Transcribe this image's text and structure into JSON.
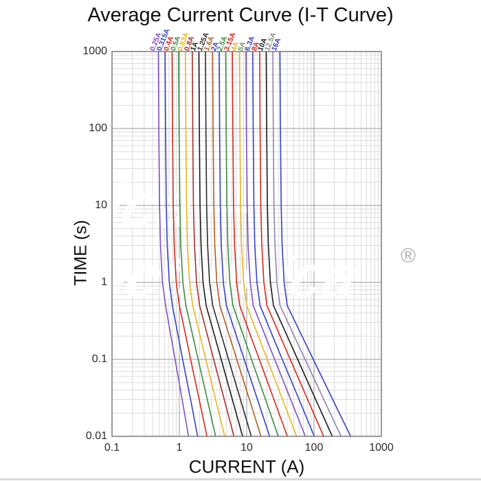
{
  "title": "Average Current Curve (I-T Curve)",
  "x_axis": {
    "label": "CURRENT (A)",
    "ticks": [
      "0.1",
      "1",
      "10",
      "100",
      "1000"
    ]
  },
  "y_axis": {
    "label": "TIME (s)",
    "ticks": [
      "1000",
      "100",
      "10",
      "1",
      "0.1",
      "0.01"
    ]
  },
  "watermark": {
    "line1": "alca—",
    "line2": "electronica",
    "registered": "®"
  },
  "chart_data": {
    "type": "line",
    "title": "Average Current Curve (I-T Curve)",
    "xlabel": "CURRENT (A)",
    "ylabel": "TIME (s)",
    "x_scale": "log",
    "y_scale": "log",
    "x_range": [
      0.1,
      1000
    ],
    "y_range": [
      0.01,
      1000
    ],
    "grid": "log minor + major, on",
    "legend_position": "rotated labels above top of each curve",
    "t_points": [
      1000,
      100,
      10,
      3,
      1,
      0.5,
      0.2,
      0.1,
      0.03,
      0.01
    ],
    "series": [
      {
        "label": "0.25A",
        "color": "#7d4fc0",
        "currents": [
          0.488,
          0.495,
          0.508,
          0.525,
          0.563,
          0.625,
          0.751,
          0.864,
          1.1,
          1.37
        ]
      },
      {
        "label": "0.315A",
        "color": "#3340c0",
        "currents": [
          0.614,
          0.624,
          0.64,
          0.662,
          0.709,
          0.788,
          0.964,
          1.12,
          1.47,
          1.87
        ]
      },
      {
        "label": "0.4A",
        "color": "#d02818",
        "currents": [
          0.78,
          0.792,
          0.812,
          0.84,
          0.9,
          1.0,
          1.25,
          1.47,
          1.97,
          2.57
        ]
      },
      {
        "label": "0.5A",
        "color": "#3a8a3e",
        "currents": [
          0.975,
          0.99,
          1.02,
          1.05,
          1.13,
          1.25,
          1.59,
          1.9,
          2.6,
          3.46
        ]
      },
      {
        "label": "0.63A",
        "color": "#e8b41e",
        "currents": [
          1.23,
          1.25,
          1.28,
          1.32,
          1.42,
          1.58,
          2.04,
          2.47,
          3.46,
          4.71
        ]
      },
      {
        "label": "0.8A",
        "color": "#a03028",
        "currents": [
          1.56,
          1.58,
          1.62,
          1.68,
          1.8,
          2.0,
          2.63,
          3.24,
          4.65,
          6.47
        ]
      },
      {
        "label": "1A",
        "color": "#1a1a1a",
        "currents": [
          1.95,
          1.98,
          2.03,
          2.1,
          2.25,
          2.5,
          3.35,
          4.18,
          6.13,
          8.71
        ]
      },
      {
        "label": "1.25A",
        "color": "#2a2a2a",
        "currents": [
          2.44,
          2.48,
          2.54,
          2.63,
          2.81,
          3.13,
          4.26,
          5.38,
          8.09,
          11.7
        ]
      },
      {
        "label": "1.6A",
        "color": "#b05c20",
        "currents": [
          3.12,
          3.17,
          3.25,
          3.36,
          3.6,
          4.0,
          5.56,
          7.13,
          11.0,
          16.3
        ]
      },
      {
        "label": "2A",
        "color": "#3340c0",
        "currents": [
          3.9,
          3.96,
          4.06,
          4.2,
          4.5,
          5.0,
          7.07,
          9.18,
          14.5,
          21.9
        ]
      },
      {
        "label": "2.5A",
        "color": "#3a8a3e",
        "currents": [
          4.88,
          4.95,
          5.08,
          5.25,
          5.63,
          6.25,
          8.99,
          11.8,
          19.1,
          29.5
        ]
      },
      {
        "label": "3.15A",
        "color": "#d02818",
        "currents": [
          6.14,
          6.24,
          6.39,
          6.62,
          7.09,
          7.88,
          11.5,
          15.4,
          25.4,
          40.2
        ]
      },
      {
        "label": "4A",
        "color": "#e8b41e",
        "currents": [
          7.8,
          7.92,
          8.12,
          8.4,
          9.0,
          10.0,
          14.9,
          20.2,
          34.2,
          55.2
        ]
      },
      {
        "label": "5A",
        "color": "#7d4fc0",
        "label_color": "#76945a",
        "currents": [
          9.75,
          9.9,
          10.2,
          10.5,
          11.3,
          12.5,
          19.0,
          26.0,
          45.1,
          74.3
        ]
      },
      {
        "label": "6.3A",
        "color": "#3340c0",
        "currents": [
          12.3,
          12.5,
          12.8,
          13.2,
          14.2,
          15.8,
          24.3,
          33.8,
          60.0,
          101
        ]
      },
      {
        "label": "8A",
        "color": "#d02818",
        "currents": [
          15.6,
          15.8,
          16.2,
          16.8,
          18.0,
          20.0,
          31.5,
          44.4,
          80.6,
          139
        ]
      },
      {
        "label": "10A",
        "color": "#1a1a1a",
        "currents": [
          19.5,
          19.8,
          20.3,
          21.0,
          22.5,
          25.0,
          40.1,
          57.2,
          106,
          187
        ]
      },
      {
        "label": "12.5A",
        "color": "#8f86a8",
        "label_color": "#8a8a8a",
        "currents": [
          24.4,
          24.8,
          25.4,
          26.3,
          28.1,
          31.3,
          50.9,
          73.7,
          140,
          252
        ]
      },
      {
        "label": "16A",
        "color": "#3340c0",
        "currents": [
          31.2,
          31.7,
          32.5,
          33.6,
          36.0,
          40.0,
          66.5,
          97.5,
          190,
          350
        ]
      }
    ]
  }
}
